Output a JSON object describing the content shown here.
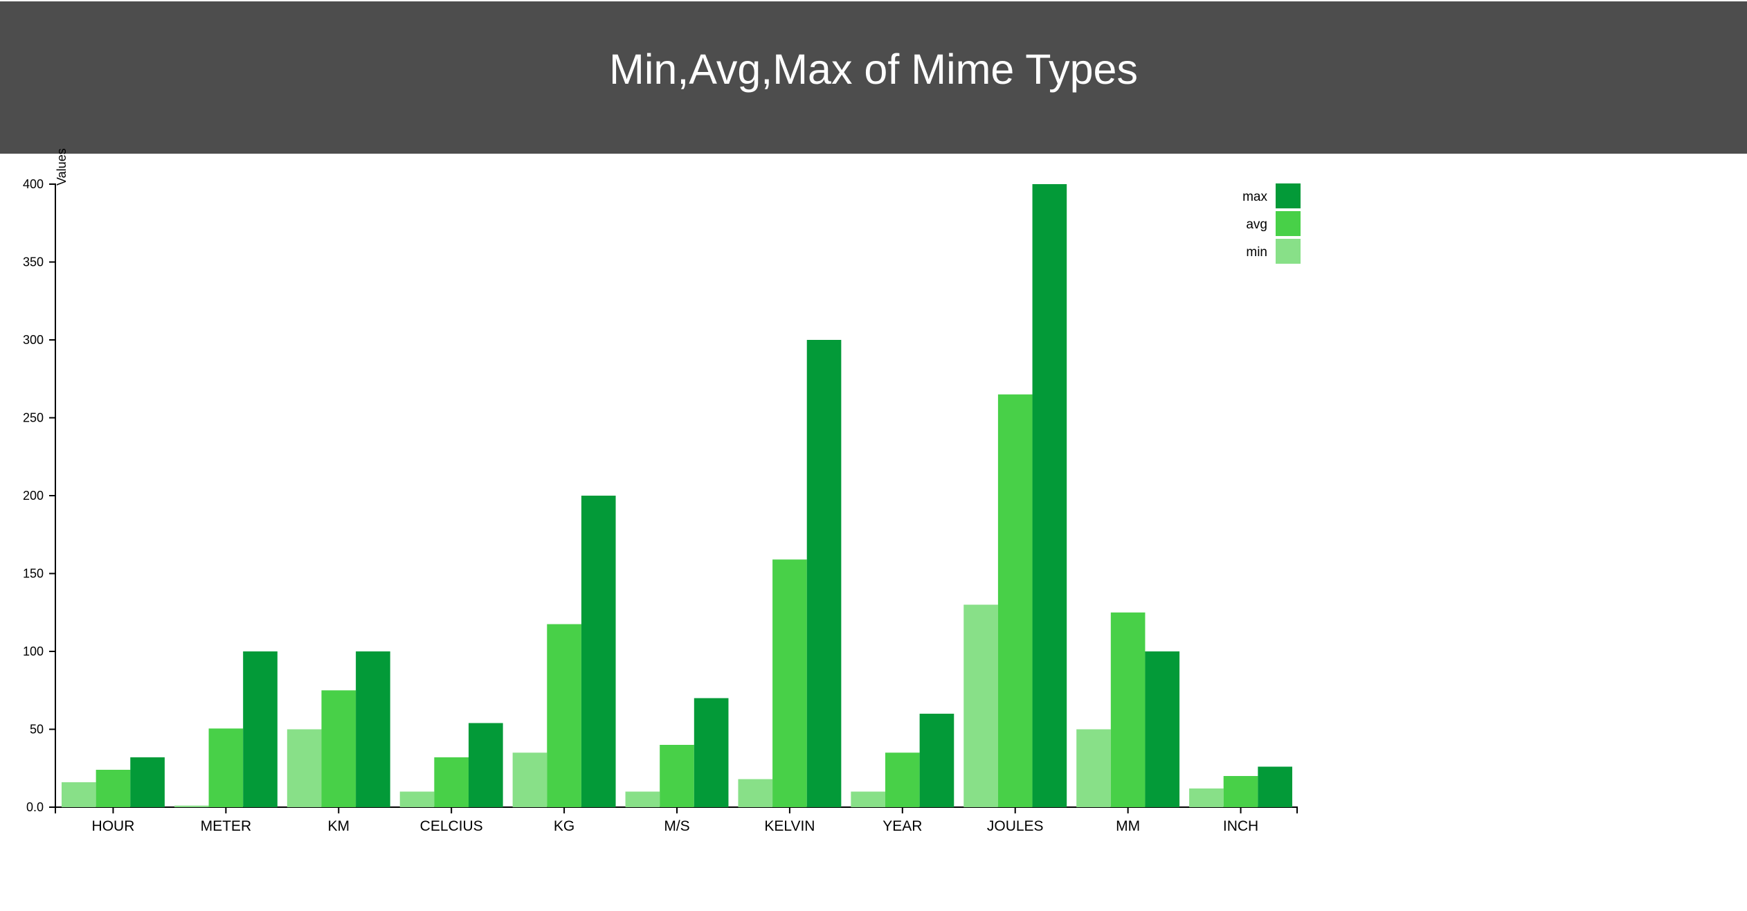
{
  "chart_data": {
    "type": "bar",
    "title": "Min,Avg,Max of Mime Types",
    "xlabel": "",
    "ylabel": "Values",
    "ylim": [
      0,
      400
    ],
    "yticks": [
      "0.0",
      "50",
      "100",
      "150",
      "200",
      "250",
      "300",
      "350",
      "400"
    ],
    "categories": [
      "HOUR",
      "METER",
      "KM",
      "CELCIUS",
      "KG",
      "M/S",
      "KELVIN",
      "YEAR",
      "JOULES",
      "MM",
      "INCH"
    ],
    "series": [
      {
        "name": "min",
        "color": "#88e088",
        "values": [
          16,
          1,
          50,
          10,
          35,
          10,
          18,
          10,
          130,
          50,
          12
        ]
      },
      {
        "name": "avg",
        "color": "#48d048",
        "values": [
          24,
          50.5,
          75,
          32,
          117.5,
          40,
          159,
          35,
          265,
          125,
          20
        ]
      },
      {
        "name": "max",
        "color": "#039a38",
        "values": [
          32,
          100,
          100,
          54,
          200,
          70,
          300,
          60,
          400,
          100,
          26
        ]
      }
    ],
    "legend": {
      "position": "top-right",
      "order": [
        "max",
        "avg",
        "min"
      ]
    },
    "grid": false
  }
}
